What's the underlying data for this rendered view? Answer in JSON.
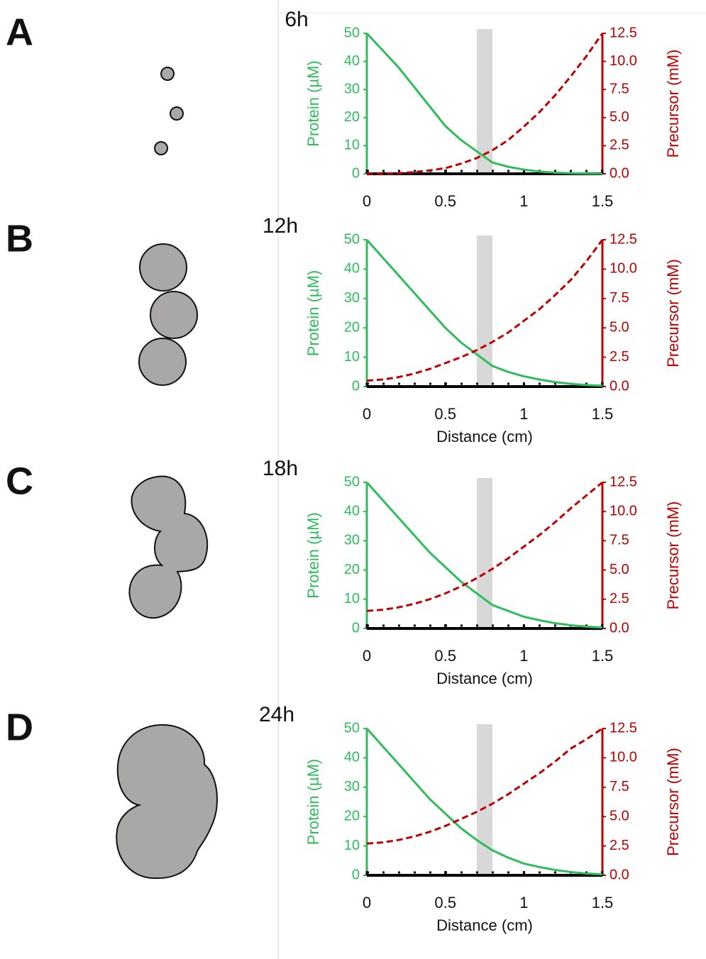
{
  "chart_data": [
    {
      "type": "line",
      "panel": "A",
      "title": "6h",
      "ylabel": "Protein (µM)",
      "y2label": "Precursor (mM)",
      "x": [
        0,
        0.1,
        0.2,
        0.3,
        0.4,
        0.5,
        0.6,
        0.7,
        0.8,
        0.9,
        1.0,
        1.1,
        1.2,
        1.3,
        1.4,
        1.5
      ],
      "series": [
        {
          "color": "#2dbd5a",
          "line_style": "solid",
          "values": [
            50,
            44,
            38,
            31,
            24,
            17,
            12,
            8,
            4,
            2.5,
            1.5,
            0.8,
            0.4,
            0.2,
            0.1,
            0
          ]
        },
        {
          "color": "#c00000",
          "line_style": "dashed",
          "axis": "y2",
          "values": [
            0,
            0,
            0.05,
            0.15,
            0.3,
            0.5,
            0.9,
            1.4,
            2.1,
            3,
            4.2,
            5.5,
            7,
            8.7,
            10.5,
            12.5
          ]
        }
      ],
      "highlight": [
        0.7,
        0.8
      ],
      "xlim": [
        0,
        1.5
      ],
      "xticks": [
        0,
        0.5,
        1,
        1.5
      ],
      "ylim": [
        0,
        50
      ],
      "yticks": [
        0,
        10,
        20,
        30,
        40,
        50
      ],
      "y2lim": [
        0,
        12.5
      ],
      "y2ticks": [
        {
          "value": 0,
          "label": "0.0"
        },
        2.5,
        {
          "value": 5,
          "label": "5.0"
        },
        7.5,
        {
          "value": 10,
          "label": "10.0"
        },
        12.5
      ]
    },
    {
      "type": "line",
      "panel": "B",
      "title": "12h",
      "ylabel": "Protein (µM)",
      "y2label": "Precursor (mM)",
      "xlabel": "Distance (cm)",
      "x": [
        0,
        0.1,
        0.2,
        0.3,
        0.4,
        0.5,
        0.6,
        0.7,
        0.8,
        0.9,
        1.0,
        1.1,
        1.2,
        1.3,
        1.4,
        1.5
      ],
      "series": [
        {
          "color": "#2dbd5a",
          "line_style": "solid",
          "values": [
            50,
            44,
            38,
            32,
            26,
            20,
            15,
            11,
            7,
            5,
            3.5,
            2.4,
            1.5,
            0.9,
            0.5,
            0.3
          ]
        },
        {
          "color": "#c00000",
          "line_style": "dashed",
          "axis": "y2",
          "values": [
            0.5,
            0.6,
            0.8,
            1.1,
            1.5,
            2,
            2.5,
            3.1,
            3.8,
            4.6,
            5.6,
            6.6,
            7.8,
            9.1,
            10.7,
            12.5
          ]
        }
      ],
      "highlight": [
        0.7,
        0.8
      ],
      "xlim": [
        0,
        1.5
      ],
      "xticks": [
        0,
        0.5,
        1,
        1.5
      ],
      "ylim": [
        0,
        50
      ],
      "yticks": [
        0,
        10,
        20,
        30,
        40,
        50
      ],
      "y2lim": [
        0,
        12.5
      ],
      "y2ticks": [
        {
          "value": 0,
          "label": "0.0"
        },
        2.5,
        {
          "value": 5,
          "label": "5.0"
        },
        7.5,
        {
          "value": 10,
          "label": "10.0"
        },
        12.5
      ]
    },
    {
      "type": "line",
      "panel": "C",
      "title": "18h",
      "ylabel": "Protein (µM)",
      "y2label": "Precursor (mM)",
      "xlabel": "Distance (cm)",
      "x": [
        0,
        0.1,
        0.2,
        0.3,
        0.4,
        0.5,
        0.6,
        0.7,
        0.8,
        0.9,
        1.0,
        1.1,
        1.2,
        1.3,
        1.4,
        1.5
      ],
      "series": [
        {
          "color": "#2dbd5a",
          "line_style": "solid",
          "values": [
            50,
            44,
            38,
            32,
            26,
            21,
            16,
            12,
            8,
            6,
            4,
            2.8,
            1.8,
            1.1,
            0.6,
            0.3
          ]
        },
        {
          "color": "#c00000",
          "line_style": "dashed",
          "axis": "y2",
          "values": [
            1.5,
            1.6,
            1.8,
            2.1,
            2.5,
            3,
            3.6,
            4.3,
            5.1,
            6,
            7,
            8,
            9.1,
            10.3,
            11.4,
            12.5
          ]
        }
      ],
      "highlight": [
        0.7,
        0.8
      ],
      "xlim": [
        0,
        1.5
      ],
      "xticks": [
        0,
        0.5,
        1,
        1.5
      ],
      "ylim": [
        0,
        50
      ],
      "yticks": [
        0,
        10,
        20,
        30,
        40,
        50
      ],
      "y2lim": [
        0,
        12.5
      ],
      "y2ticks": [
        {
          "value": 0,
          "label": "0.0"
        },
        2.5,
        {
          "value": 5,
          "label": "5.0"
        },
        7.5,
        {
          "value": 10,
          "label": "10.0"
        },
        12.5
      ]
    },
    {
      "type": "line",
      "panel": "D",
      "title": "24h",
      "ylabel": "Protein (µM)",
      "y2label": "Precursor (mM)",
      "xlabel": "Distance (cm)",
      "x": [
        0,
        0.1,
        0.2,
        0.3,
        0.4,
        0.5,
        0.6,
        0.7,
        0.8,
        0.9,
        1.0,
        1.1,
        1.2,
        1.3,
        1.4,
        1.5
      ],
      "series": [
        {
          "color": "#2dbd5a",
          "line_style": "solid",
          "values": [
            50,
            44,
            38,
            32,
            26,
            21,
            16,
            12,
            8.5,
            6,
            4,
            2.8,
            1.8,
            1.1,
            0.6,
            0.3
          ]
        },
        {
          "color": "#c00000",
          "line_style": "dashed",
          "axis": "y2",
          "values": [
            2.7,
            2.8,
            3,
            3.3,
            3.7,
            4.2,
            4.8,
            5.4,
            6.1,
            6.9,
            7.8,
            8.7,
            9.7,
            10.8,
            11.6,
            12.5
          ]
        }
      ],
      "highlight": [
        0.7,
        0.8
      ],
      "xlim": [
        0,
        1.5
      ],
      "xticks": [
        0,
        0.5,
        1,
        1.5
      ],
      "ylim": [
        0,
        50
      ],
      "yticks": [
        0,
        10,
        20,
        30,
        40,
        50
      ],
      "y2lim": [
        0,
        12.5
      ],
      "y2ticks": [
        {
          "value": 0,
          "label": "0.0"
        },
        2.5,
        {
          "value": 5,
          "label": "5.0"
        },
        7.5,
        {
          "value": 10,
          "label": "10.0"
        },
        12.5
      ]
    }
  ]
}
